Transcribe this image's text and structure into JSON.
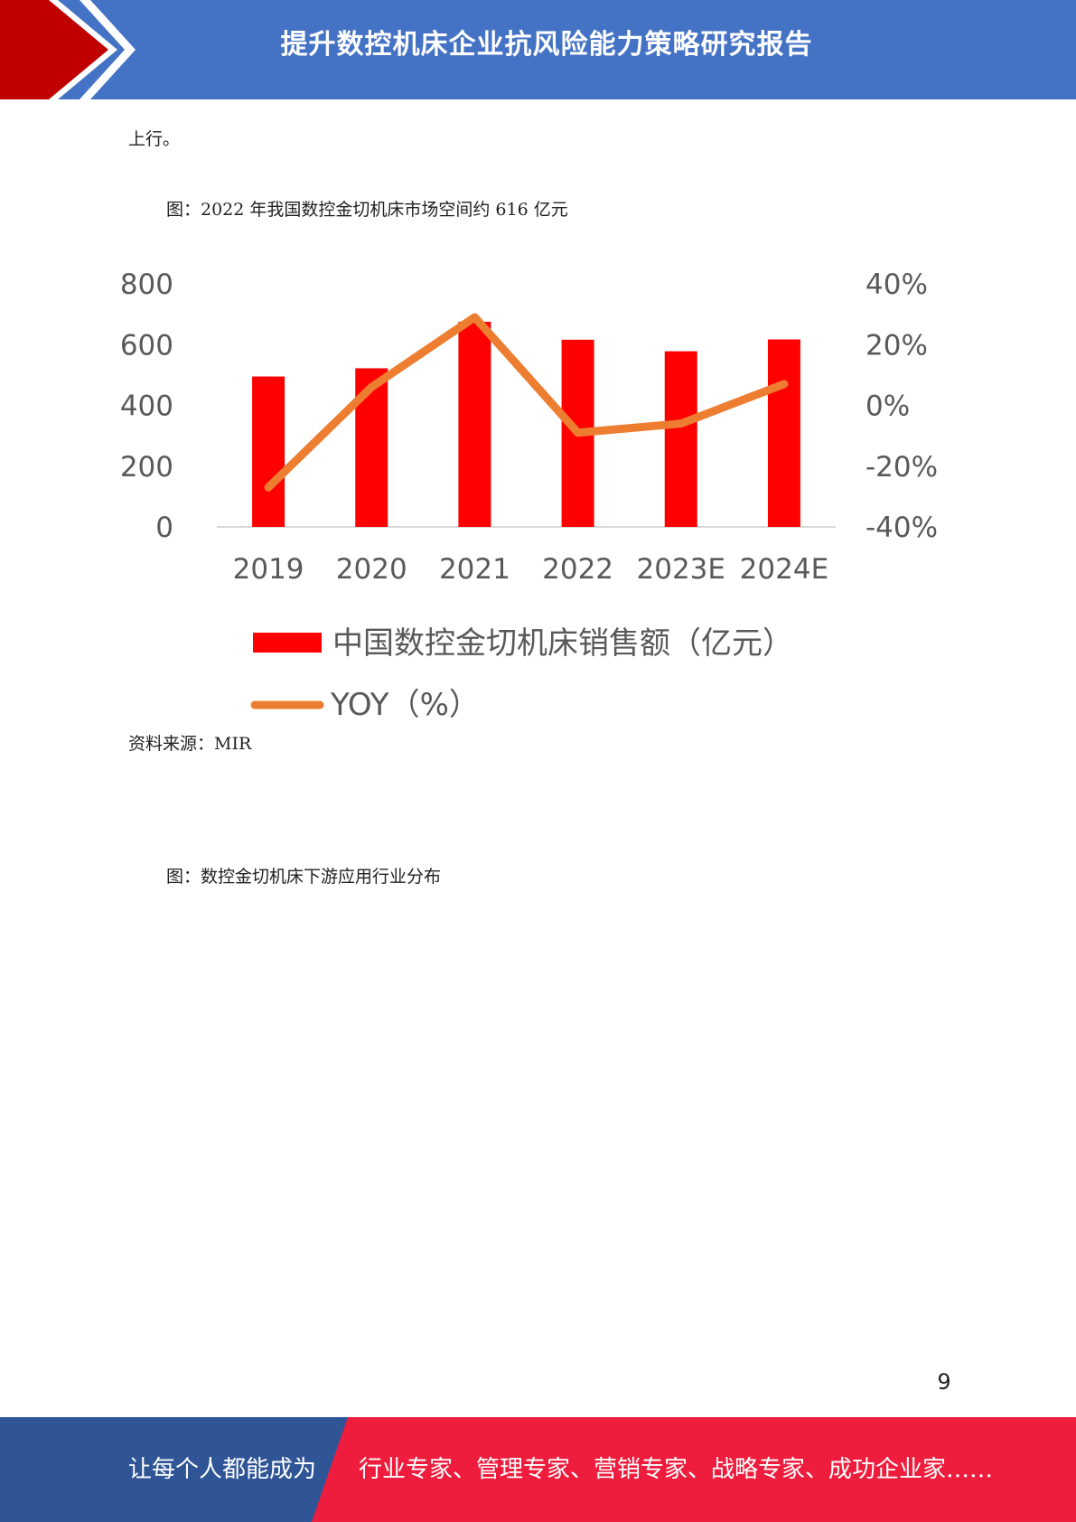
{
  "header": {
    "title": "提升数控机床企业抗风险能力策略研究报告"
  },
  "body": {
    "intro_tail": "上行。",
    "figure1_caption": "图：2022 年我国数控金切机床市场空间约 616 亿元",
    "source": "资料来源：MIR",
    "figure2_caption": "图：数控金切机床下游应用行业分布"
  },
  "colors": {
    "header_blue": "#4472c4",
    "bar_red": "#ff0000",
    "line_orange": "#ed7d31",
    "footer_blue": "#2f5597",
    "footer_red": "#ee1c3d"
  },
  "chart_data": {
    "type": "bar+line",
    "categories": [
      "2019",
      "2020",
      "2021",
      "2022",
      "2023E",
      "2024E"
    ],
    "series": [
      {
        "name": "中国数控金切机床销售额（亿元）",
        "type": "bar",
        "axis": "left",
        "values": [
          495,
          522,
          675,
          616,
          578,
          617
        ]
      },
      {
        "name": "YOY（%）",
        "type": "line",
        "axis": "right",
        "values": [
          -27,
          6,
          29,
          -9,
          -6,
          7
        ]
      }
    ],
    "y_left": {
      "range": [
        0,
        800
      ],
      "ticks": [
        "0",
        "200",
        "400",
        "600",
        "800"
      ]
    },
    "y_right": {
      "range": [
        -40,
        40
      ],
      "ticks": [
        "-40%",
        "-20%",
        "0%",
        "20%",
        "40%"
      ]
    },
    "legend_position": "bottom"
  },
  "page_number": "9",
  "footer": {
    "left_text": "让每个人都能成为",
    "right_text": "行业专家、管理专家、营销专家、战略专家、成功企业家……"
  }
}
